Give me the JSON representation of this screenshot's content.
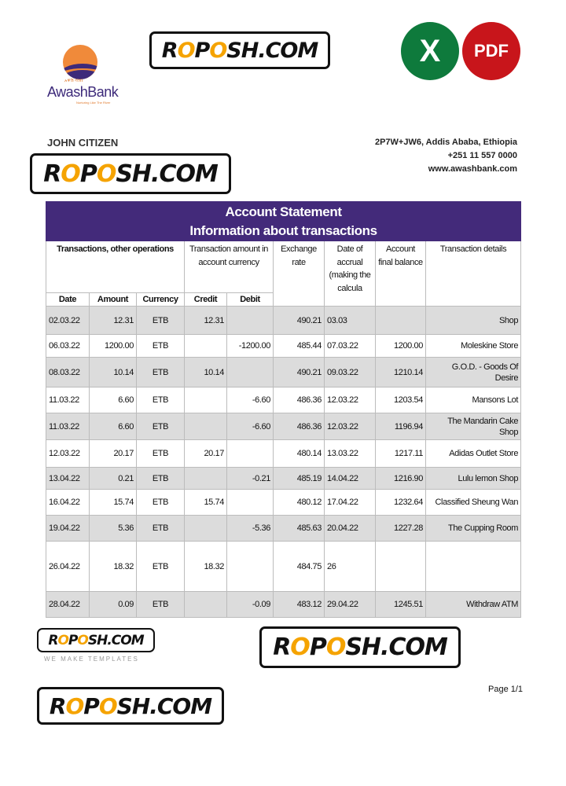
{
  "bank": {
    "name": "AwashBank",
    "amharic": "አዋሽ ባንክ",
    "tagline": "Nurturing Like The River"
  },
  "icons": {
    "excel": "X",
    "pdf": "PDF"
  },
  "customer": {
    "name": "JOHN CITIZEN"
  },
  "contact": {
    "address": "2P7W+JW6, Addis Ababa, Ethiopia",
    "phone": "+251 11 557 0000",
    "website": "www.awashbank.com"
  },
  "statement": {
    "title_line1": "Account Statement",
    "title_line2": "Information about transactions",
    "groups": {
      "transactions": "Transactions, other operations",
      "amount": "Transaction amount in account currency",
      "exchange": "Exchange rate",
      "accrual": "Date of accrual (making the calcula",
      "balance": "Account final balance",
      "details": "Transaction details"
    },
    "columns": [
      "Date",
      "Amount",
      "Currency",
      "Credit",
      "Debit"
    ],
    "rows": [
      {
        "date": "02.03.22",
        "amount": "12.31",
        "currency": "ETB",
        "credit": "12.31",
        "debit": "",
        "rate": "490.21",
        "accrual": "03.03",
        "balance": "",
        "details": "Shop"
      },
      {
        "date": "06.03.22",
        "amount": "1200.00",
        "currency": "ETB",
        "credit": "",
        "debit": "-1200.00",
        "rate": "485.44",
        "accrual": "07.03.22",
        "balance": "1200.00",
        "details": "Moleskine Store"
      },
      {
        "date": "08.03.22",
        "amount": "10.14",
        "currency": "ETB",
        "credit": "10.14",
        "debit": "",
        "rate": "490.21",
        "accrual": "09.03.22",
        "balance": "1210.14",
        "details": "G.O.D. - Goods Of Desire"
      },
      {
        "date": "11.03.22",
        "amount": "6.60",
        "currency": "ETB",
        "credit": "",
        "debit": "-6.60",
        "rate": "486.36",
        "accrual": "12.03.22",
        "balance": "1203.54",
        "details": "Mansons Lot"
      },
      {
        "date": "11.03.22",
        "amount": "6.60",
        "currency": "ETB",
        "credit": "",
        "debit": "-6.60",
        "rate": "486.36",
        "accrual": "12.03.22",
        "balance": "1196.94",
        "details": "The Mandarin Cake Shop"
      },
      {
        "date": "12.03.22",
        "amount": "20.17",
        "currency": "ETB",
        "credit": "20.17",
        "debit": "",
        "rate": "480.14",
        "accrual": "13.03.22",
        "balance": "1217.11",
        "details": "Adidas Outlet Store"
      },
      {
        "date": "13.04.22",
        "amount": "0.21",
        "currency": "ETB",
        "credit": "",
        "debit": "-0.21",
        "rate": "485.19",
        "accrual": "14.04.22",
        "balance": "1216.90",
        "details": "Lulu lemon Shop"
      },
      {
        "date": "16.04.22",
        "amount": "15.74",
        "currency": "ETB",
        "credit": "15.74",
        "debit": "",
        "rate": "480.12",
        "accrual": "17.04.22",
        "balance": "1232.64",
        "details": "Classified Sheung Wan"
      },
      {
        "date": "19.04.22",
        "amount": "5.36",
        "currency": "ETB",
        "credit": "",
        "debit": "-5.36",
        "rate": "485.63",
        "accrual": "20.04.22",
        "balance": "1227.28",
        "details": "The Cupping Room"
      },
      {
        "date": "26.04.22",
        "amount": "18.32",
        "currency": "ETB",
        "credit": "18.32",
        "debit": "",
        "rate": "484.75",
        "accrual": "26",
        "balance": "",
        "details": ""
      },
      {
        "date": "28.04.22",
        "amount": "0.09",
        "currency": "ETB",
        "credit": "",
        "debit": "-0.09",
        "rate": "483.12",
        "accrual": "29.04.22",
        "balance": "1245.51",
        "details": "Withdraw ATM"
      }
    ]
  },
  "watermark": {
    "text_a": "R",
    "text_o1": "O",
    "text_p": "P",
    "text_o2": "O",
    "text_rest": "SH.COM",
    "tagline": "WE MAKE TEMPLATES"
  },
  "footer": {
    "page": "Page 1/1"
  },
  "colors": {
    "header": "#432a7a",
    "excel": "#0e7a3c",
    "pdf": "#c8151b",
    "watermark_accent": "#f5a300"
  }
}
